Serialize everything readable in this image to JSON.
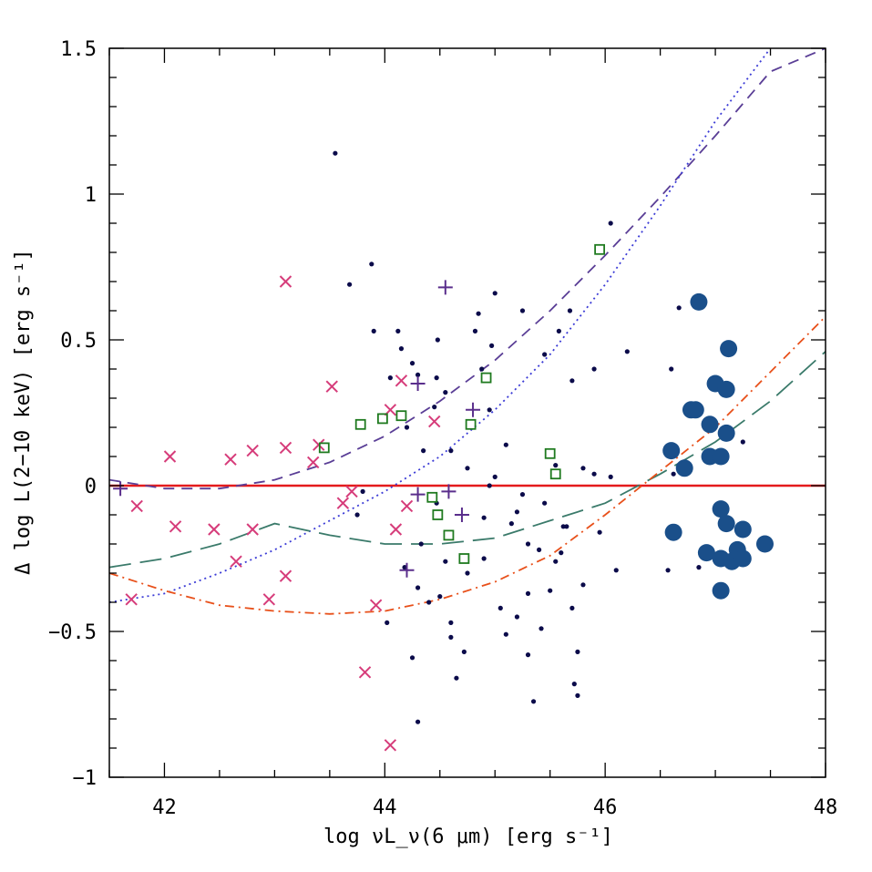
{
  "chart_data": {
    "type": "scatter",
    "title": "",
    "xlabel": "log νL_ν(6 μm) [erg s⁻¹]",
    "ylabel": "Δ log L(2−10 keV) [erg s⁻¹]",
    "xlim": [
      41.5,
      48
    ],
    "ylim": [
      -1,
      1.5
    ],
    "x_tick_labels": [
      "42",
      "44",
      "46",
      "48"
    ],
    "y_tick_labels": [
      "−1",
      "−0.5",
      "0",
      "0.5",
      "1",
      "1.5"
    ],
    "grid": false,
    "legend": "none",
    "colors": {
      "dots": "#0b0b4a",
      "crosses": "#d63c7a",
      "plus": "#5a2e8c",
      "squares": "#1f7a1f",
      "big_circles": "#1a4f8a",
      "zero_line": "#e41a1c",
      "dashed_purple": "#5a3e96",
      "dotted_blue": "#3b3bd6",
      "longdash_teal": "#3a7a6a",
      "dashdot_orange": "#e8501a"
    },
    "series": [
      {
        "marker": "dot",
        "points": [
          [
            43.55,
            1.14
          ],
          [
            43.68,
            0.69
          ],
          [
            43.88,
            0.76
          ],
          [
            43.9,
            0.53
          ],
          [
            44.12,
            0.53
          ],
          [
            44.15,
            0.47
          ],
          [
            44.25,
            0.42
          ],
          [
            44.3,
            0.38
          ],
          [
            44.48,
            0.5
          ],
          [
            44.47,
            0.37
          ],
          [
            44.05,
            0.37
          ],
          [
            44.35,
            0.12
          ],
          [
            44.55,
            0.32
          ],
          [
            44.6,
            0.12
          ],
          [
            44.85,
            0.59
          ],
          [
            44.82,
            0.53
          ],
          [
            44.88,
            0.4
          ],
          [
            44.97,
            0.48
          ],
          [
            45.0,
            0.66
          ],
          [
            45.25,
            0.6
          ],
          [
            44.95,
            0.26
          ],
          [
            44.95,
            0.0
          ],
          [
            45.1,
            0.14
          ],
          [
            45.2,
            -0.09
          ],
          [
            45.25,
            -0.03
          ],
          [
            45.3,
            -0.2
          ],
          [
            45.3,
            -0.37
          ],
          [
            45.42,
            -0.49
          ],
          [
            45.58,
            0.53
          ],
          [
            45.68,
            0.6
          ],
          [
            45.55,
            0.07
          ],
          [
            45.65,
            -0.14
          ],
          [
            45.7,
            -0.42
          ],
          [
            45.75,
            -0.57
          ],
          [
            45.75,
            -0.72
          ],
          [
            45.72,
            -0.68
          ],
          [
            45.7,
            0.36
          ],
          [
            45.9,
            0.4
          ],
          [
            46.05,
            0.9
          ],
          [
            46.2,
            0.46
          ],
          [
            45.9,
            0.04
          ],
          [
            46.05,
            0.03
          ],
          [
            46.6,
            0.4
          ],
          [
            46.67,
            0.61
          ],
          [
            46.62,
            0.04
          ],
          [
            46.57,
            -0.29
          ],
          [
            46.85,
            -0.28
          ],
          [
            47.25,
            0.15
          ],
          [
            44.55,
            -0.26
          ],
          [
            44.6,
            -0.47
          ],
          [
            44.65,
            -0.66
          ],
          [
            44.72,
            -0.57
          ],
          [
            44.9,
            -0.25
          ],
          [
            44.6,
            -0.52
          ],
          [
            44.45,
            0.27
          ],
          [
            44.5,
            -0.38
          ],
          [
            45.05,
            -0.42
          ],
          [
            45.2,
            -0.45
          ],
          [
            45.1,
            -0.51
          ],
          [
            45.45,
            -0.06
          ],
          [
            45.4,
            -0.22
          ],
          [
            45.5,
            -0.36
          ],
          [
            45.6,
            -0.23
          ],
          [
            45.8,
            -0.34
          ],
          [
            43.75,
            -0.1
          ],
          [
            43.8,
            -0.02
          ],
          [
            44.02,
            -0.47
          ],
          [
            44.25,
            -0.59
          ],
          [
            44.3,
            -0.81
          ],
          [
            44.33,
            -0.2
          ],
          [
            44.4,
            -0.4
          ],
          [
            44.47,
            -0.06
          ],
          [
            45.35,
            -0.74
          ],
          [
            45.55,
            -0.26
          ],
          [
            45.8,
            0.06
          ],
          [
            45.95,
            -0.16
          ],
          [
            44.75,
            0.06
          ],
          [
            44.2,
            0.2
          ],
          [
            44.3,
            -0.35
          ],
          [
            45.0,
            0.03
          ],
          [
            45.15,
            -0.13
          ],
          [
            44.75,
            -0.3
          ],
          [
            44.9,
            -0.11
          ],
          [
            45.3,
            -0.58
          ],
          [
            45.45,
            0.45
          ],
          [
            45.62,
            -0.14
          ],
          [
            46.1,
            -0.29
          ],
          [
            44.18,
            -0.28
          ]
        ]
      },
      {
        "marker": "cross",
        "points": [
          [
            41.7,
            -0.39
          ],
          [
            41.75,
            -0.07
          ],
          [
            42.05,
            0.1
          ],
          [
            42.1,
            -0.14
          ],
          [
            42.45,
            -0.15
          ],
          [
            42.6,
            0.09
          ],
          [
            42.65,
            -0.26
          ],
          [
            42.8,
            0.12
          ],
          [
            42.8,
            -0.15
          ],
          [
            42.95,
            -0.39
          ],
          [
            43.1,
            0.13
          ],
          [
            43.1,
            -0.31
          ],
          [
            43.1,
            0.7
          ],
          [
            43.35,
            0.08
          ],
          [
            43.4,
            0.14
          ],
          [
            43.52,
            0.34
          ],
          [
            43.62,
            -0.06
          ],
          [
            43.7,
            -0.02
          ],
          [
            43.82,
            -0.64
          ],
          [
            43.92,
            -0.41
          ],
          [
            44.05,
            0.26
          ],
          [
            44.05,
            -0.89
          ],
          [
            44.1,
            -0.15
          ],
          [
            44.15,
            0.36
          ],
          [
            44.2,
            -0.07
          ],
          [
            44.45,
            0.22
          ]
        ]
      },
      {
        "marker": "plus",
        "points": [
          [
            41.6,
            -0.01
          ],
          [
            44.3,
            0.35
          ],
          [
            44.55,
            0.68
          ],
          [
            44.3,
            -0.03
          ],
          [
            44.58,
            -0.02
          ],
          [
            44.2,
            -0.29
          ],
          [
            44.7,
            -0.1
          ],
          [
            44.8,
            0.26
          ]
        ]
      },
      {
        "marker": "square",
        "points": [
          [
            43.45,
            0.13
          ],
          [
            43.78,
            0.21
          ],
          [
            43.98,
            0.23
          ],
          [
            44.15,
            0.24
          ],
          [
            44.43,
            -0.04
          ],
          [
            44.48,
            -0.1
          ],
          [
            44.58,
            -0.17
          ],
          [
            44.72,
            -0.25
          ],
          [
            44.78,
            0.21
          ],
          [
            44.92,
            0.37
          ],
          [
            45.5,
            0.11
          ],
          [
            45.55,
            0.04
          ],
          [
            45.95,
            0.81
          ]
        ]
      },
      {
        "marker": "big-circle",
        "points": [
          [
            46.6,
            0.12
          ],
          [
            46.62,
            -0.16
          ],
          [
            46.72,
            0.06
          ],
          [
            46.78,
            0.26
          ],
          [
            46.82,
            0.26
          ],
          [
            46.85,
            0.63
          ],
          [
            46.95,
            0.21
          ],
          [
            46.95,
            0.1
          ],
          [
            47.0,
            0.35
          ],
          [
            47.05,
            0.1
          ],
          [
            47.05,
            -0.08
          ],
          [
            47.1,
            0.18
          ],
          [
            47.1,
            0.33
          ],
          [
            47.12,
            0.47
          ],
          [
            47.1,
            -0.13
          ],
          [
            46.92,
            -0.23
          ],
          [
            47.05,
            -0.25
          ],
          [
            47.05,
            -0.36
          ],
          [
            47.15,
            -0.26
          ],
          [
            47.2,
            -0.22
          ],
          [
            47.25,
            -0.15
          ],
          [
            47.25,
            -0.25
          ],
          [
            47.45,
            -0.2
          ]
        ]
      },
      {
        "line": "solid",
        "points": [
          [
            41.5,
            0
          ],
          [
            48,
            0
          ]
        ]
      },
      {
        "line": "dashed",
        "points": [
          [
            41.5,
            0.02
          ],
          [
            42,
            -0.01
          ],
          [
            42.5,
            -0.01
          ],
          [
            43,
            0.02
          ],
          [
            43.5,
            0.08
          ],
          [
            44,
            0.17
          ],
          [
            44.5,
            0.29
          ],
          [
            45,
            0.43
          ],
          [
            45.5,
            0.6
          ],
          [
            46,
            0.79
          ],
          [
            46.5,
            0.99
          ],
          [
            47,
            1.2
          ],
          [
            47.5,
            1.42
          ],
          [
            48,
            1.5
          ]
        ]
      },
      {
        "line": "dotted",
        "points": [
          [
            41.5,
            -0.4
          ],
          [
            42,
            -0.37
          ],
          [
            42.5,
            -0.3
          ],
          [
            43,
            -0.22
          ],
          [
            43.5,
            -0.12
          ],
          [
            44,
            -0.02
          ],
          [
            44.5,
            0.1
          ],
          [
            45,
            0.26
          ],
          [
            45.5,
            0.45
          ],
          [
            46,
            0.69
          ],
          [
            46.5,
            0.96
          ],
          [
            47,
            1.25
          ],
          [
            47.5,
            1.5
          ]
        ]
      },
      {
        "line": "long-dashed",
        "points": [
          [
            41.5,
            -0.28
          ],
          [
            42,
            -0.25
          ],
          [
            42.5,
            -0.2
          ],
          [
            43,
            -0.13
          ],
          [
            43.5,
            -0.17
          ],
          [
            44,
            -0.2
          ],
          [
            44.5,
            -0.2
          ],
          [
            45,
            -0.18
          ],
          [
            45.5,
            -0.12
          ],
          [
            46,
            -0.06
          ],
          [
            46.5,
            0.04
          ],
          [
            47,
            0.15
          ],
          [
            47.5,
            0.29
          ],
          [
            48,
            0.46
          ]
        ]
      },
      {
        "line": "dash-dot",
        "points": [
          [
            41.5,
            -0.3
          ],
          [
            42,
            -0.36
          ],
          [
            42.5,
            -0.41
          ],
          [
            43,
            -0.43
          ],
          [
            43.5,
            -0.44
          ],
          [
            44,
            -0.43
          ],
          [
            44.5,
            -0.39
          ],
          [
            45,
            -0.33
          ],
          [
            45.5,
            -0.24
          ],
          [
            46,
            -0.1
          ],
          [
            46.5,
            0.05
          ],
          [
            47,
            0.2
          ],
          [
            47.5,
            0.39
          ],
          [
            48,
            0.58
          ]
        ]
      }
    ]
  }
}
